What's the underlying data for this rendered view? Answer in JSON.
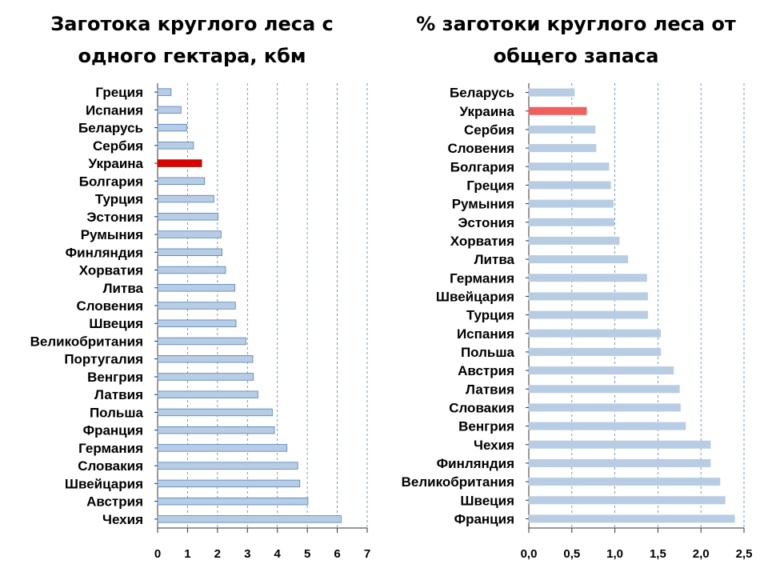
{
  "chart_data": [
    {
      "type": "bar",
      "orientation": "horizontal",
      "title": "Заготока круглого леса с одного гектара, кбм",
      "categories": [
        "Греция",
        "Испания",
        "Беларусь",
        "Сербия",
        "Украина",
        "Болгария",
        "Турция",
        "Эстония",
        "Румыния",
        "Финляндия",
        "Хорватия",
        "Литва",
        "Словения",
        "Швеция",
        "Великобритания",
        "Португалия",
        "Венгрия",
        "Латвия",
        "Польша",
        "Франция",
        "Германия",
        "Словакия",
        "Швейцария",
        "Австрия",
        "Чехия"
      ],
      "values": [
        0.45,
        0.78,
        0.97,
        1.2,
        1.47,
        1.57,
        1.88,
        2.02,
        2.12,
        2.15,
        2.27,
        2.58,
        2.6,
        2.62,
        2.95,
        3.18,
        3.2,
        3.35,
        3.83,
        3.9,
        4.32,
        4.68,
        4.75,
        5.02,
        6.13
      ],
      "highlight": "Украина",
      "xlim": [
        0,
        7
      ],
      "ticks": [
        "0",
        "1",
        "2",
        "3",
        "4",
        "5",
        "6",
        "7"
      ],
      "grid": true,
      "colors": {
        "bar": "#b8cce4",
        "bar_edge": "#4f81bd",
        "highlight": "#dd0000",
        "highlight_edge": "#8b0000",
        "grid": "#4f81bd"
      }
    },
    {
      "type": "bar",
      "orientation": "horizontal",
      "title": "% заготоки круглого леса от общего запаса",
      "categories": [
        "Беларусь",
        "Украина",
        "Сербия",
        "Словения",
        "Болгария",
        "Греция",
        "Румыния",
        "Эстония",
        "Хорватия",
        "Литва",
        "Германия",
        "Швейцария",
        "Турция",
        "Испания",
        "Польша",
        "Австрия",
        "Латвия",
        "Словакия",
        "Венгрия",
        "Чехия",
        "Финляндия",
        "Великобритания",
        "Швеция",
        "Франция"
      ],
      "values": [
        0.53,
        0.67,
        0.77,
        0.78,
        0.93,
        0.95,
        0.98,
        0.99,
        1.05,
        1.15,
        1.37,
        1.38,
        1.38,
        1.53,
        1.53,
        1.68,
        1.75,
        1.76,
        1.82,
        2.11,
        2.11,
        2.22,
        2.28,
        2.39
      ],
      "highlight": "Украина",
      "xlim": [
        0,
        2.5
      ],
      "ticks": [
        "0,0",
        "0,5",
        "1,0",
        "1,5",
        "2,0",
        "2,5"
      ],
      "grid": true,
      "colors": {
        "bar": "#b8cce4",
        "bar_edge": "#b8cce4",
        "highlight": "#f06060",
        "highlight_edge": "#f06060",
        "grid": "#4f81bd"
      }
    }
  ]
}
